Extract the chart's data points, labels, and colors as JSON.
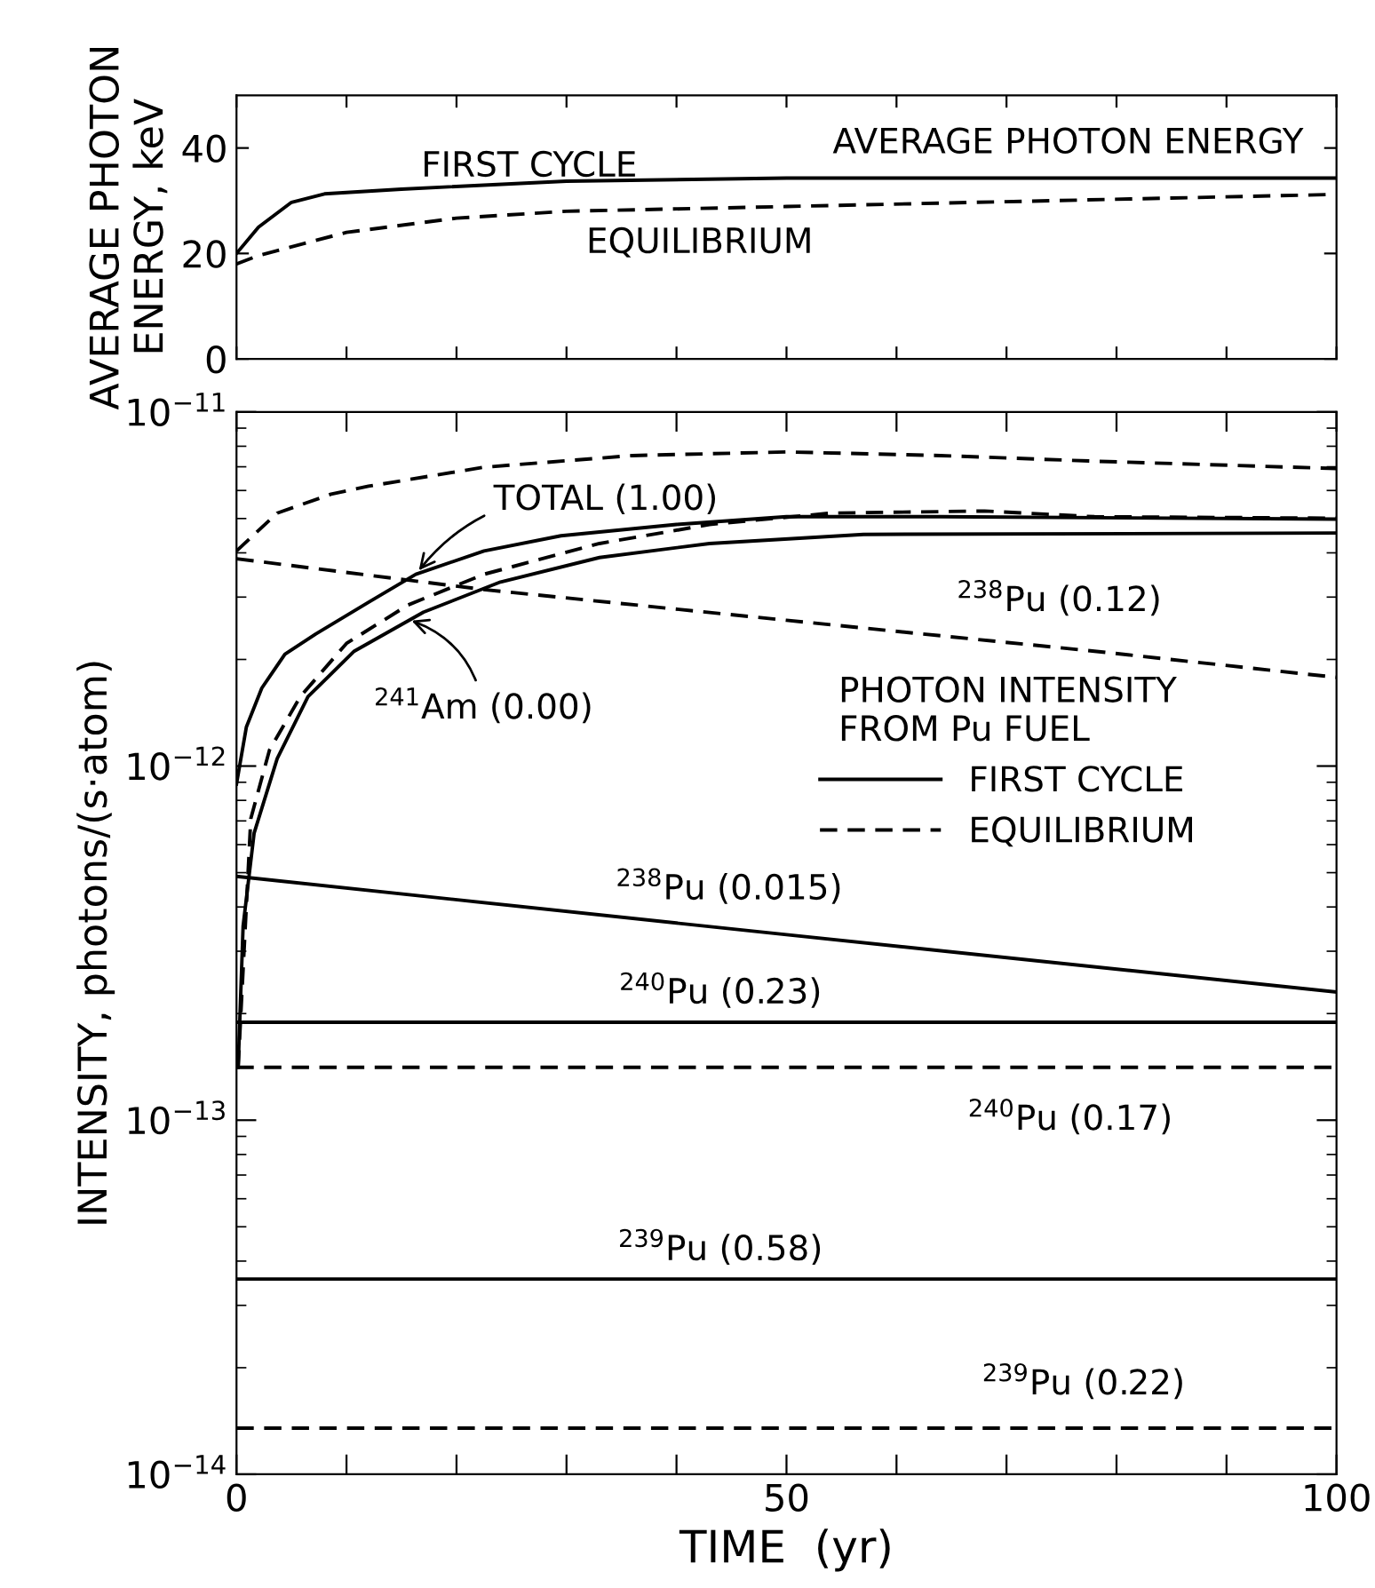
{
  "chart_data": [
    {
      "type": "line",
      "title": "AVERAGE PHOTON ENERGY",
      "ylabel": "AVERAGE PHOTON\nENERGY, keV",
      "xlim": [
        0,
        100
      ],
      "ylim": [
        0,
        50
      ],
      "xticks": [
        0,
        {
          "value": 10,
          "label": null
        },
        {
          "value": 20,
          "label": null
        },
        {
          "value": 30,
          "label": null
        },
        {
          "value": 40,
          "label": null
        },
        50,
        {
          "value": 60,
          "label": null
        },
        {
          "value": 70,
          "label": null
        },
        {
          "value": 80,
          "label": null
        },
        {
          "value": 90,
          "label": null
        },
        100
      ],
      "yticks": [
        0,
        20,
        40
      ],
      "tick_labels": "y",
      "grid": false,
      "legend": false,
      "series": [
        {
          "name": "FIRST CYCLE",
          "color": "#000000",
          "line_style": "solid",
          "x": [
            0,
            2,
            5,
            8,
            15,
            30,
            50,
            100
          ],
          "values": [
            20,
            25,
            29.7,
            31.3,
            32.2,
            33.7,
            34.3,
            34.3
          ]
        },
        {
          "name": "EQUILIBRIUM",
          "color": "#000000",
          "line_style": "dashed",
          "x": [
            0,
            2,
            10,
            20,
            30,
            50,
            100
          ],
          "values": [
            18,
            19.6,
            24,
            26.7,
            28,
            28.9,
            31.2
          ]
        }
      ]
    },
    {
      "type": "line",
      "xlabel": "TIME  (yr)",
      "ylabel": "INTENSITY, photons/(s·atom)",
      "log": "y",
      "xlim": [
        0,
        100
      ],
      "ylim": [
        1e-14,
        1e-11
      ],
      "xticks": [
        0,
        {
          "value": 10,
          "label": null
        },
        {
          "value": 20,
          "label": null
        },
        {
          "value": 30,
          "label": null
        },
        {
          "value": 40,
          "label": null
        },
        50,
        {
          "value": 60,
          "label": null
        },
        {
          "value": 70,
          "label": null
        },
        {
          "value": 80,
          "label": null
        },
        {
          "value": 90,
          "label": null
        },
        100
      ],
      "yticks": [
        {
          "value": 1e-14,
          "label": "10$^{−14}$"
        },
        {
          "value": 1e-13,
          "label": "10$^{−13}$"
        },
        {
          "value": 1e-12,
          "label": "10$^{−12}$"
        },
        {
          "value": 1e-11,
          "label": "10$^{−11}$"
        }
      ],
      "grid": false,
      "legend": "right",
      "legend_title": "PHOTON INTENSITY\nFROM Pu FUEL",
      "series": [
        {
          "name": "FIRST CYCLE",
          "color": "#000000",
          "line_style": "solid",
          "x": [
            0,
            0.9,
            2.3,
            4.4,
            7.2,
            12,
            16.3,
            22.5,
            29.5,
            40,
            50,
            64,
            100
          ],
          "values": [
            8.9e-13,
            1.29e-12,
            1.66e-12,
            2.07e-12,
            2.36e-12,
            2.9e-12,
            3.48e-12,
            4.05e-12,
            4.47e-12,
            4.81e-12,
            5.06e-12,
            5.06e-12,
            4.98e-12
          ]
        },
        {
          "name": "EQUILIBRIUM",
          "color": "#000000",
          "line_style": "dashed",
          "x": [
            0,
            3.7,
            8.6,
            12,
            22.5,
            36,
            50,
            64,
            78,
            100
          ],
          "values": [
            4.05e-12,
            5.18e-12,
            5.86e-12,
            6.17e-12,
            6.98e-12,
            7.53e-12,
            7.71e-12,
            7.53e-12,
            7.26e-12,
            6.92e-12
          ]
        },
        {
          "color": "#000000",
          "line_style": "solid",
          "x": [
            0.15,
            0.6,
            1.6,
            3.7,
            6.5,
            10.7,
            17,
            24,
            33,
            43,
            57,
            100
          ],
          "values": [
            1.41e-13,
            3.53e-13,
            6.46e-13,
            1.05e-12,
            1.57e-12,
            2.11e-12,
            2.72e-12,
            3.31e-12,
            3.88e-12,
            4.25e-12,
            4.51e-12,
            4.55e-12
          ]
        },
        {
          "color": "#000000",
          "line_style": "dashed",
          "x": [
            0.15,
            1.3,
            3,
            5.8,
            10,
            15.6,
            22.5,
            33,
            43,
            54,
            68,
            78,
            100
          ],
          "values": [
            1.41e-13,
            7.1e-13,
            1.11e-12,
            1.57e-12,
            2.22e-12,
            2.85e-12,
            3.48e-12,
            4.25e-12,
            4.81e-12,
            5.18e-12,
            5.25e-12,
            5.06e-12,
            5.01e-12
          ]
        },
        {
          "color": "#000000",
          "line_style": "dashed",
          "x": [
            0,
            22.5,
            50,
            78,
            100
          ],
          "values": [
            3.85e-12,
            3.15e-12,
            2.58e-12,
            2.11e-12,
            1.78e-12
          ]
        },
        {
          "color": "#000000",
          "line_style": "solid",
          "x": [
            0,
            50,
            100
          ],
          "values": [
            4.88e-13,
            3.34e-13,
            2.3e-13
          ]
        },
        {
          "color": "#000000",
          "line_style": "solid",
          "x": [
            0,
            100
          ],
          "values": [
            1.89e-13,
            1.89e-13
          ]
        },
        {
          "color": "#000000",
          "line_style": "dashed",
          "x": [
            0,
            100
          ],
          "values": [
            1.41e-13,
            1.41e-13
          ]
        },
        {
          "color": "#000000",
          "line_style": "solid",
          "x": [
            0,
            100
          ],
          "values": [
            3.56e-14,
            3.56e-14
          ]
        },
        {
          "color": "#000000",
          "line_style": "dashed",
          "x": [
            0,
            100
          ],
          "values": [
            1.35e-14,
            1.35e-14
          ]
        }
      ],
      "annotations": [
        {
          "text": "TOTAL (1.00)",
          "x": 16.3,
          "y": 3.48e-12
        },
        {
          "text": "$^{241}$Am (0.00)",
          "x": 15.5,
          "y": 2.6e-12
        },
        {
          "text": "$^{238}$Pu (0.12)",
          "x": 74.8,
          "y": 2.2e-12
        },
        {
          "text": "$^{238}$Pu (0.015)",
          "x": 44.8,
          "y": 3.6e-13
        },
        {
          "text": "$^{240}$Pu (0.23)",
          "x": 44,
          "y": 1.89e-13
        },
        {
          "text": "$^{240}$Pu (0.17)",
          "x": 75.8,
          "y": 1.41e-13
        },
        {
          "text": "$^{239}$Pu (0.58)",
          "x": 44,
          "y": 3.56e-14
        },
        {
          "text": "$^{239}$Pu (0.22)",
          "x": 77,
          "y": 1.35e-14
        }
      ]
    }
  ]
}
